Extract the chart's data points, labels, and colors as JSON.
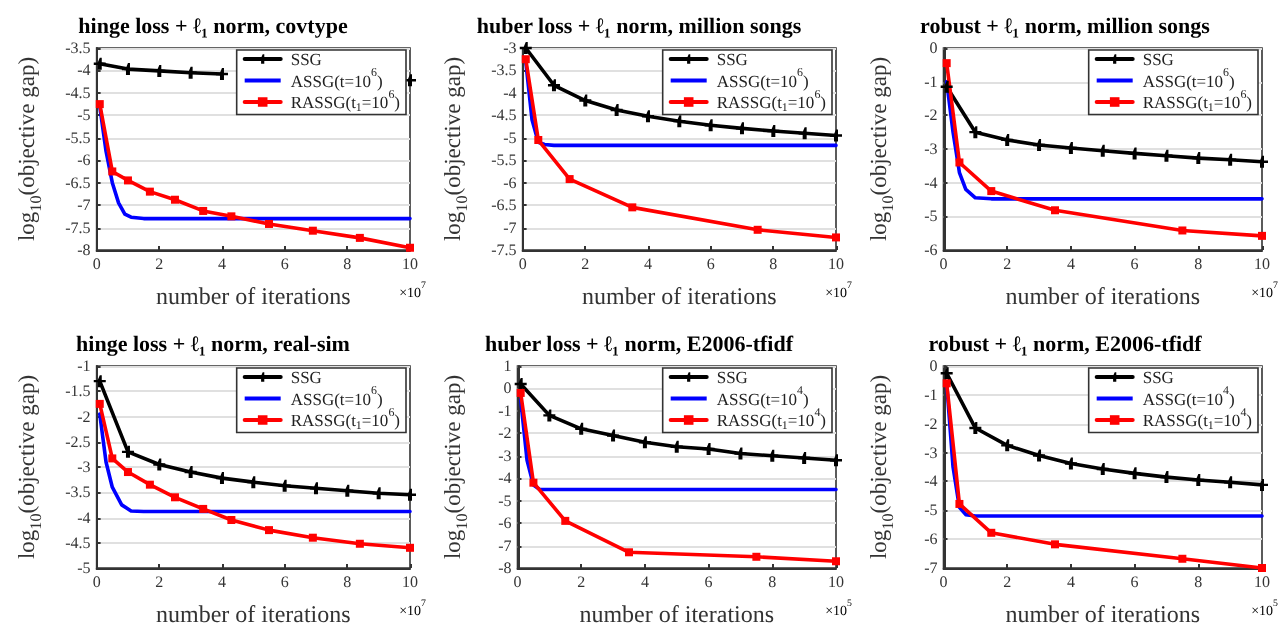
{
  "chart_data": [
    {
      "type": "line",
      "title": "hinge loss + ℓ₁ norm, covtype",
      "xlabel": "number of iterations",
      "ylabel": "log$_{10}$(objective gap)",
      "annotations": [
        "×10$^{7}$"
      ],
      "xlim": [
        0,
        10
      ],
      "xticks": [
        0,
        2,
        4,
        6,
        8,
        10
      ],
      "ylim": [
        -8,
        -3.5
      ],
      "yticks": [
        -8,
        -7.5,
        -7,
        -6.5,
        -6,
        -5.5,
        -5,
        -4.5,
        -4,
        -3.5
      ],
      "grid": "y",
      "legend": "top right",
      "series": [
        {
          "name": "SSG",
          "color": "#000000",
          "marker": "cross",
          "x": [
            0.1,
            1,
            2,
            3,
            4,
            5,
            6,
            7,
            8,
            9,
            10
          ],
          "values": [
            -3.85,
            -3.97,
            -4.01,
            -4.05,
            -4.08,
            null,
            null,
            null,
            null,
            null,
            -4.22
          ]
        },
        {
          "name": "ASSG(t=10$^{6}$)",
          "color": "#0000ff",
          "marker": "none",
          "x": [
            0.1,
            0.3,
            0.5,
            0.7,
            0.9,
            1.1,
            1.5,
            2,
            10
          ],
          "values": [
            -4.8,
            -5.8,
            -6.5,
            -6.95,
            -7.2,
            -7.27,
            -7.3,
            -7.3,
            -7.3
          ]
        },
        {
          "name": "RASSG(t$_{1}$=10$^{6}$)",
          "color": "#ff0000",
          "marker": "square",
          "x": [
            0.1,
            0.5,
            1,
            1.7,
            2.5,
            3.4,
            4.3,
            5.5,
            6.9,
            8.4,
            10
          ],
          "values": [
            -4.75,
            -6.25,
            -6.45,
            -6.7,
            -6.88,
            -7.13,
            -7.25,
            -7.42,
            -7.57,
            -7.73,
            -7.95
          ]
        }
      ]
    },
    {
      "type": "line",
      "title": "huber loss + ℓ₁ norm, million songs",
      "xlabel": "number of iterations",
      "ylabel": "log$_{10}$(objective gap)",
      "annotations": [
        "×10$^{7}$"
      ],
      "xlim": [
        0,
        10
      ],
      "xticks": [
        0,
        2,
        4,
        6,
        8,
        10
      ],
      "ylim": [
        -7.5,
        -3
      ],
      "yticks": [
        -7.5,
        -7,
        -6.5,
        -6,
        -5.5,
        -5,
        -4.5,
        -4,
        -3.5,
        -3
      ],
      "grid": "y",
      "legend": "top right",
      "series": [
        {
          "name": "SSG",
          "color": "#000000",
          "marker": "cross",
          "x": [
            0.1,
            1,
            2,
            3,
            4,
            5,
            6,
            7,
            8,
            9,
            10
          ],
          "values": [
            -3.0,
            -3.83,
            -4.17,
            -4.38,
            -4.52,
            -4.63,
            -4.72,
            -4.79,
            -4.85,
            -4.9,
            -4.95
          ]
        },
        {
          "name": "ASSG(t=10$^{6}$)",
          "color": "#0000ff",
          "marker": "none",
          "x": [
            0.1,
            0.3,
            0.5,
            0.7,
            1,
            10
          ],
          "values": [
            -3.3,
            -4.6,
            -5.1,
            -5.15,
            -5.17,
            -5.17
          ]
        },
        {
          "name": "RASSG(t$_{1}$=10$^{6}$)",
          "color": "#ff0000",
          "marker": "square",
          "x": [
            0.1,
            0.5,
            1.5,
            3.5,
            7.5,
            10
          ],
          "values": [
            -3.25,
            -5.05,
            -5.92,
            -6.55,
            -7.05,
            -7.22
          ]
        }
      ]
    },
    {
      "type": "line",
      "title": "robust + ℓ₁ norm, million songs",
      "xlabel": "number of iterations",
      "ylabel": "log$_{10}$(objective gap)",
      "annotations": [
        "×10$^{7}$"
      ],
      "xlim": [
        0,
        10
      ],
      "xticks": [
        0,
        2,
        4,
        6,
        8,
        10
      ],
      "ylim": [
        -6,
        0
      ],
      "yticks": [
        -6,
        -5,
        -4,
        -3,
        -2,
        -1,
        0
      ],
      "grid": "y",
      "legend": "top right",
      "series": [
        {
          "name": "SSG",
          "color": "#000000",
          "marker": "cross",
          "x": [
            0.1,
            1,
            2,
            3,
            4,
            5,
            6,
            7,
            8,
            9,
            10
          ],
          "values": [
            -1.15,
            -2.5,
            -2.73,
            -2.88,
            -2.97,
            -3.05,
            -3.13,
            -3.2,
            -3.27,
            -3.32,
            -3.38
          ]
        },
        {
          "name": "ASSG(t=10$^{6}$)",
          "color": "#0000ff",
          "marker": "none",
          "x": [
            0.1,
            0.3,
            0.5,
            0.7,
            1,
            1.5,
            10
          ],
          "values": [
            -1.0,
            -2.5,
            -3.7,
            -4.2,
            -4.45,
            -4.48,
            -4.48
          ]
        },
        {
          "name": "RASSG(t$_{1}$=10$^{6}$)",
          "color": "#ff0000",
          "marker": "square",
          "x": [
            0.1,
            0.5,
            1.5,
            3.5,
            7.5,
            10
          ],
          "values": [
            -0.45,
            -3.4,
            -4.25,
            -4.82,
            -5.42,
            -5.58
          ]
        }
      ]
    },
    {
      "type": "line",
      "title": "hinge loss + ℓ₁ norm, real-sim",
      "xlabel": "number of iterations",
      "ylabel": "log$_{10}$(objective gap)",
      "annotations": [
        "×10$^{7}$"
      ],
      "xlim": [
        0,
        10
      ],
      "xticks": [
        0,
        2,
        4,
        6,
        8,
        10
      ],
      "ylim": [
        -5,
        -1
      ],
      "yticks": [
        -5,
        -4.5,
        -4,
        -3.5,
        -3,
        -2.5,
        -2,
        -1.5,
        -1
      ],
      "grid": "y",
      "legend": "top right",
      "series": [
        {
          "name": "SSG",
          "color": "#000000",
          "marker": "cross",
          "x": [
            0.1,
            1,
            2,
            3,
            4,
            5,
            6,
            7,
            8,
            9,
            10
          ],
          "values": [
            -1.3,
            -2.7,
            -2.95,
            -3.1,
            -3.22,
            -3.3,
            -3.37,
            -3.42,
            -3.47,
            -3.52,
            -3.55
          ]
        },
        {
          "name": "ASSG(t=10$^{6}$)",
          "color": "#0000ff",
          "marker": "none",
          "x": [
            0.1,
            0.3,
            0.5,
            0.8,
            1.1,
            1.5,
            10
          ],
          "values": [
            -1.95,
            -2.9,
            -3.4,
            -3.75,
            -3.87,
            -3.88,
            -3.88
          ]
        },
        {
          "name": "RASSG(t$_{1}$=10$^{6}$)",
          "color": "#ff0000",
          "marker": "square",
          "x": [
            0.1,
            0.5,
            1,
            1.7,
            2.5,
            3.4,
            4.3,
            5.5,
            6.9,
            8.4,
            10
          ],
          "values": [
            -1.75,
            -2.83,
            -3.1,
            -3.35,
            -3.6,
            -3.83,
            -4.05,
            -4.25,
            -4.4,
            -4.52,
            -4.6
          ]
        }
      ]
    },
    {
      "type": "line",
      "title": "huber loss + ℓ₁ norm, E2006-tfidf",
      "xlabel": "number of iterations",
      "ylabel": "log$_{10}$(objective gap)",
      "annotations": [
        "×10$^{5}$"
      ],
      "xlim": [
        0,
        10
      ],
      "xticks": [
        0,
        2,
        4,
        6,
        8,
        10
      ],
      "ylim": [
        -8,
        1
      ],
      "yticks": [
        -8,
        -7,
        -6,
        -5,
        -4,
        -3,
        -2,
        -1,
        0,
        1
      ],
      "grid": "y",
      "legend": "top right",
      "series": [
        {
          "name": "SSG",
          "color": "#000000",
          "marker": "cross",
          "x": [
            0.1,
            1,
            2,
            3,
            4,
            5,
            6,
            7,
            8,
            9,
            10
          ],
          "values": [
            0.2,
            -1.2,
            -1.8,
            -2.1,
            -2.4,
            -2.6,
            -2.7,
            -2.9,
            -3.0,
            -3.1,
            -3.2
          ]
        },
        {
          "name": "ASSG(t=10$^{4}$)",
          "color": "#0000ff",
          "marker": "none",
          "x": [
            0.1,
            0.3,
            0.5,
            0.7,
            1,
            10
          ],
          "values": [
            -0.5,
            -3.2,
            -4.3,
            -4.5,
            -4.5,
            -4.5
          ]
        },
        {
          "name": "RASSG(t$_{1}$=10$^{4}$)",
          "color": "#ff0000",
          "marker": "square",
          "x": [
            0.1,
            0.5,
            1.5,
            3.5,
            7.5,
            10
          ],
          "values": [
            -0.2,
            -4.2,
            -5.9,
            -7.3,
            -7.5,
            -7.7
          ]
        }
      ]
    },
    {
      "type": "line",
      "title": "robust + ℓ₁ norm, E2006-tfidf",
      "xlabel": "number of iterations",
      "ylabel": "log$_{10}$(objective gap)",
      "annotations": [
        "×10$^{5}$"
      ],
      "xlim": [
        0,
        10
      ],
      "xticks": [
        0,
        2,
        4,
        6,
        8,
        10
      ],
      "ylim": [
        -7,
        0
      ],
      "yticks": [
        -7,
        -6,
        -5,
        -4,
        -3,
        -2,
        -1,
        0
      ],
      "grid": "y",
      "legend": "top right",
      "series": [
        {
          "name": "SSG",
          "color": "#000000",
          "marker": "cross",
          "x": [
            0.1,
            1,
            2,
            3,
            4,
            5,
            6,
            7,
            8,
            9,
            10
          ],
          "values": [
            -0.25,
            -2.15,
            -2.75,
            -3.1,
            -3.38,
            -3.57,
            -3.72,
            -3.85,
            -3.95,
            -4.03,
            -4.12
          ]
        },
        {
          "name": "ASSG(t=10$^{4}$)",
          "color": "#0000ff",
          "marker": "none",
          "x": [
            0.1,
            0.3,
            0.5,
            0.7,
            1,
            10
          ],
          "values": [
            -0.6,
            -3.5,
            -4.9,
            -5.15,
            -5.2,
            -5.2
          ]
        },
        {
          "name": "RASSG(t$_{1}$=10$^{4}$)",
          "color": "#ff0000",
          "marker": "square",
          "x": [
            0.1,
            0.5,
            1.5,
            3.5,
            7.5,
            10
          ],
          "values": [
            -0.6,
            -4.78,
            -5.78,
            -6.18,
            -6.68,
            -7.0
          ]
        }
      ]
    }
  ]
}
